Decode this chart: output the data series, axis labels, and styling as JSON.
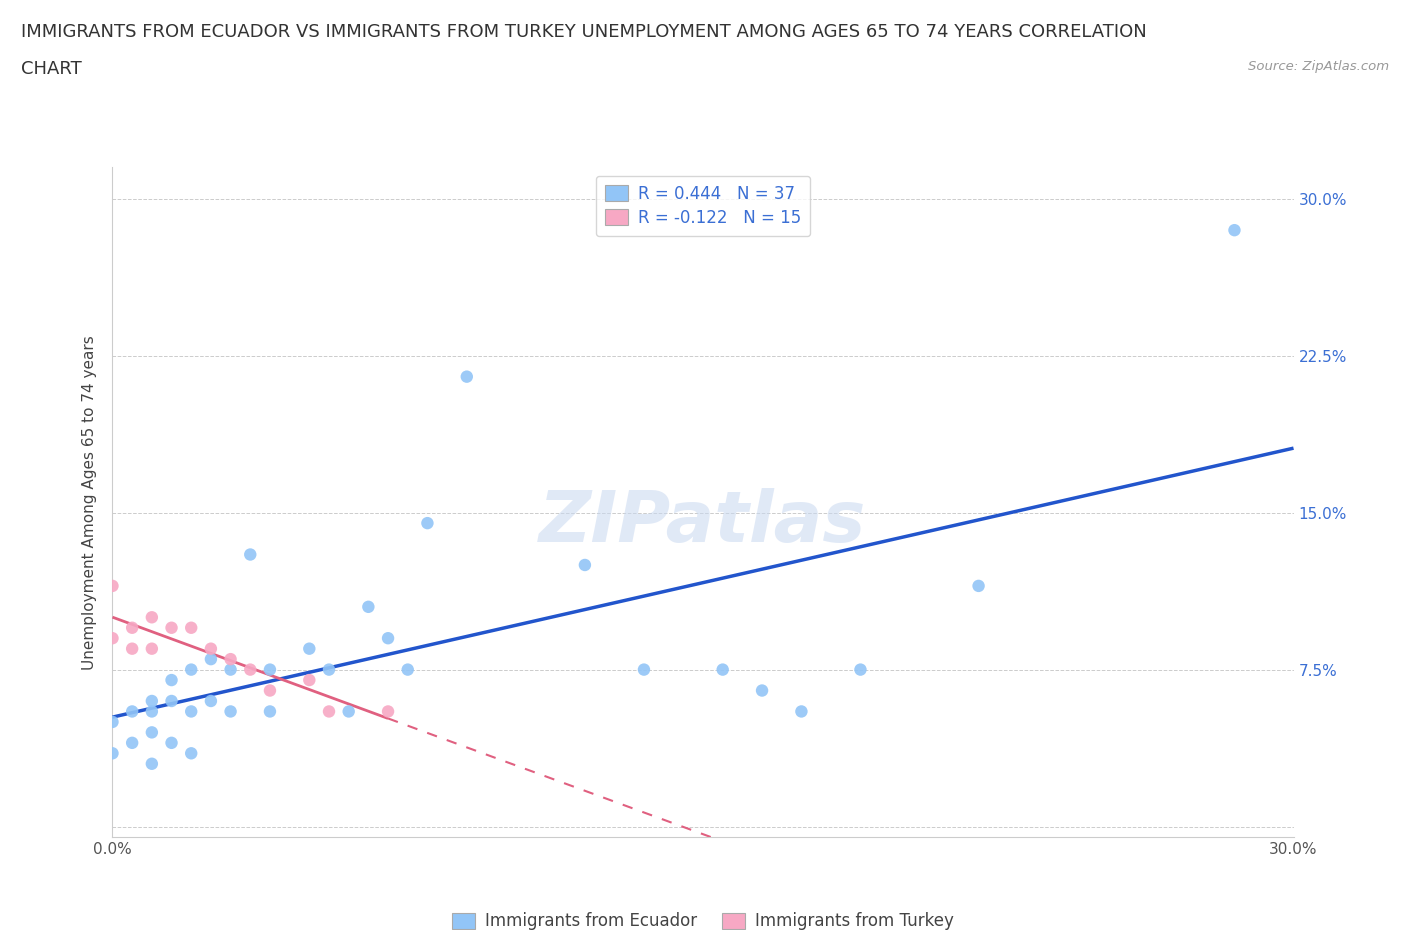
{
  "title_line1": "IMMIGRANTS FROM ECUADOR VS IMMIGRANTS FROM TURKEY UNEMPLOYMENT AMONG AGES 65 TO 74 YEARS CORRELATION",
  "title_line2": "CHART",
  "source": "Source: ZipAtlas.com",
  "ylabel": "Unemployment Among Ages 65 to 74 years",
  "xlim": [
    0.0,
    0.3
  ],
  "ylim": [
    -0.005,
    0.315
  ],
  "xticks": [
    0.0,
    0.05,
    0.1,
    0.15,
    0.2,
    0.25,
    0.3
  ],
  "xtick_labels": [
    "0.0%",
    "",
    "",
    "",
    "",
    "",
    "30.0%"
  ],
  "ytick_positions": [
    0.0,
    0.075,
    0.15,
    0.225,
    0.3
  ],
  "ytick_labels": [
    "",
    "7.5%",
    "15.0%",
    "22.5%",
    "30.0%"
  ],
  "ecuador_color": "#92c5f7",
  "turkey_color": "#f7a8c4",
  "ecuador_R": 0.444,
  "ecuador_N": 37,
  "turkey_R": -0.122,
  "turkey_N": 15,
  "ecuador_label": "Immigrants from Ecuador",
  "turkey_label": "Immigrants from Turkey",
  "trend_ecuador_color": "#2255cc",
  "trend_turkey_color": "#e06080",
  "ecuador_points_x": [
    0.0,
    0.0,
    0.005,
    0.005,
    0.01,
    0.01,
    0.01,
    0.01,
    0.015,
    0.015,
    0.015,
    0.02,
    0.02,
    0.02,
    0.025,
    0.025,
    0.03,
    0.03,
    0.035,
    0.04,
    0.04,
    0.05,
    0.055,
    0.06,
    0.065,
    0.07,
    0.075,
    0.08,
    0.09,
    0.12,
    0.135,
    0.155,
    0.165,
    0.175,
    0.19,
    0.22,
    0.285
  ],
  "ecuador_points_y": [
    0.035,
    0.05,
    0.055,
    0.04,
    0.06,
    0.055,
    0.045,
    0.03,
    0.07,
    0.06,
    0.04,
    0.075,
    0.055,
    0.035,
    0.06,
    0.08,
    0.075,
    0.055,
    0.13,
    0.075,
    0.055,
    0.085,
    0.075,
    0.055,
    0.105,
    0.09,
    0.075,
    0.145,
    0.215,
    0.125,
    0.075,
    0.075,
    0.065,
    0.055,
    0.075,
    0.115,
    0.285
  ],
  "turkey_points_x": [
    0.0,
    0.0,
    0.005,
    0.005,
    0.01,
    0.01,
    0.015,
    0.02,
    0.025,
    0.03,
    0.035,
    0.04,
    0.05,
    0.055,
    0.07
  ],
  "turkey_points_y": [
    0.115,
    0.09,
    0.095,
    0.085,
    0.1,
    0.085,
    0.095,
    0.095,
    0.085,
    0.08,
    0.075,
    0.065,
    0.07,
    0.055,
    0.055
  ],
  "background_color": "#ffffff",
  "grid_color": "#cccccc",
  "title_fontsize": 13,
  "axis_label_fontsize": 11,
  "tick_fontsize": 11,
  "legend_fontsize": 12
}
